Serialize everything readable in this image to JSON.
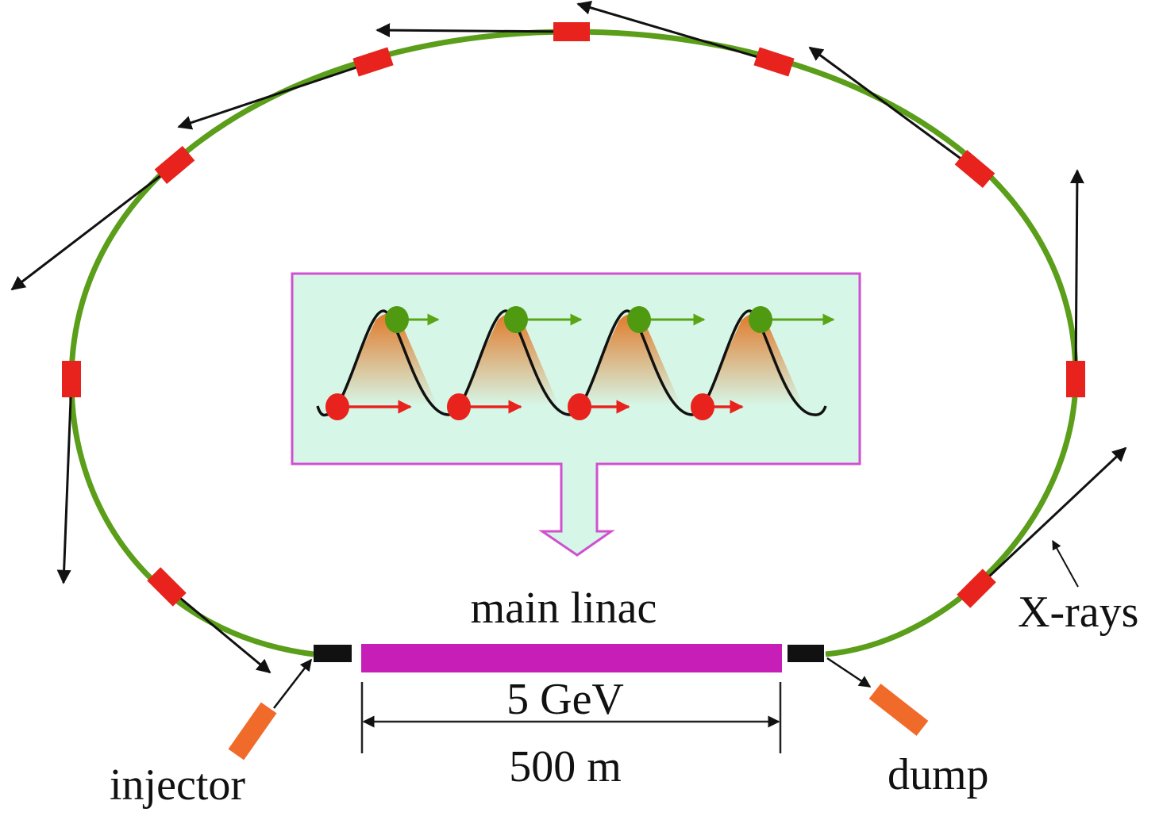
{
  "labels": {
    "main_linac": "main linac",
    "energy": "5 GeV",
    "length": "500 m",
    "injector": "injector",
    "dump": "dump",
    "xrays": "X-rays"
  },
  "colors": {
    "ring": "#5a9e1a",
    "magnet": "#e8221c",
    "linac": "#c81eb8",
    "injector_dump": "#f06a2a",
    "inset_fill": "#d6f7e8",
    "inset_border": "#d050d0",
    "accelerated_bunch": "#4f9a10",
    "decelerated_bunch": "#e8221c"
  },
  "inset": {
    "rf_periods": 4
  }
}
